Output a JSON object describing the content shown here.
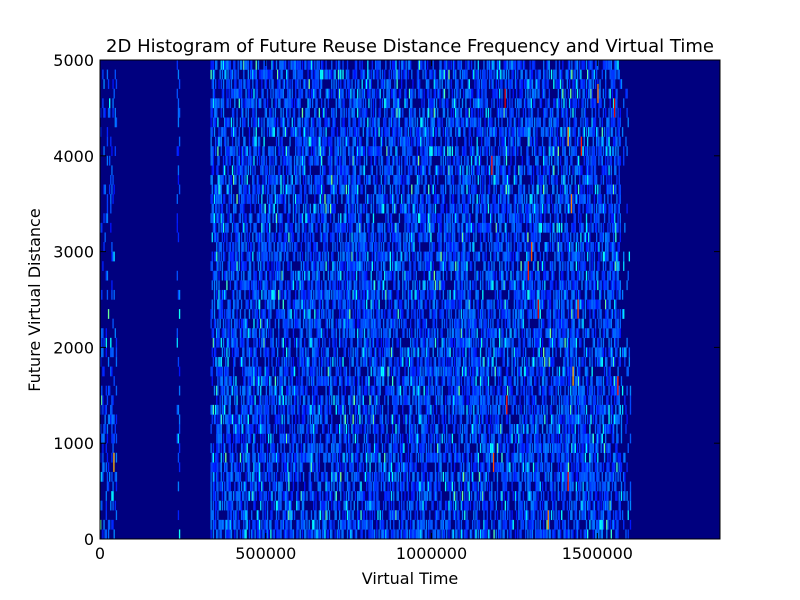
{
  "chart_data": {
    "type": "heatmap",
    "title": "2D Histogram of Future Reuse Distance Frequency and Virtual Time",
    "xlabel": "Virtual Time",
    "ylabel": "Future Virtual Distance",
    "xlim": [
      0,
      1870000
    ],
    "ylim": [
      0,
      5000
    ],
    "x_ticks": [
      0,
      500000,
      1000000,
      1500000
    ],
    "y_ticks": [
      0,
      1000,
      2000,
      3000,
      4000,
      5000
    ],
    "x_tick_labels": [
      "0",
      "500000",
      "1000000",
      "1500000"
    ],
    "y_tick_labels": [
      "0",
      "1000",
      "2000",
      "3000",
      "4000",
      "5000"
    ],
    "colormap": "jet",
    "background_color": "#00007f",
    "grid": false,
    "colorbar": false,
    "active_x_ranges": [
      [
        0,
        50000
      ],
      [
        230000,
        240000
      ],
      [
        330000,
        1600000
      ]
    ],
    "hot_cells": [
      {
        "x": 1180000,
        "y": 3800,
        "intensity": 0.85
      },
      {
        "x": 1185000,
        "y": 700,
        "intensity": 0.8
      },
      {
        "x": 1220000,
        "y": 4500,
        "intensity": 0.9
      },
      {
        "x": 1225000,
        "y": 1300,
        "intensity": 0.85
      },
      {
        "x": 1290000,
        "y": 2700,
        "intensity": 0.85
      },
      {
        "x": 1300000,
        "y": 2900,
        "intensity": 0.8
      },
      {
        "x": 1320000,
        "y": 2300,
        "intensity": 0.9
      },
      {
        "x": 1350000,
        "y": 100,
        "intensity": 0.75
      },
      {
        "x": 1410000,
        "y": 4100,
        "intensity": 0.7
      },
      {
        "x": 1420000,
        "y": 3400,
        "intensity": 0.75
      },
      {
        "x": 1440000,
        "y": 2300,
        "intensity": 0.8
      },
      {
        "x": 1450000,
        "y": 4000,
        "intensity": 0.85
      },
      {
        "x": 1410000,
        "y": 500,
        "intensity": 0.85
      },
      {
        "x": 1500000,
        "y": 4550,
        "intensity": 0.75
      },
      {
        "x": 1550000,
        "y": 4400,
        "intensity": 0.9
      },
      {
        "x": 1560000,
        "y": 1500,
        "intensity": 0.85
      },
      {
        "x": 1425000,
        "y": 1600,
        "intensity": 0.7
      },
      {
        "x": 40000,
        "y": 700,
        "intensity": 0.7
      }
    ]
  }
}
